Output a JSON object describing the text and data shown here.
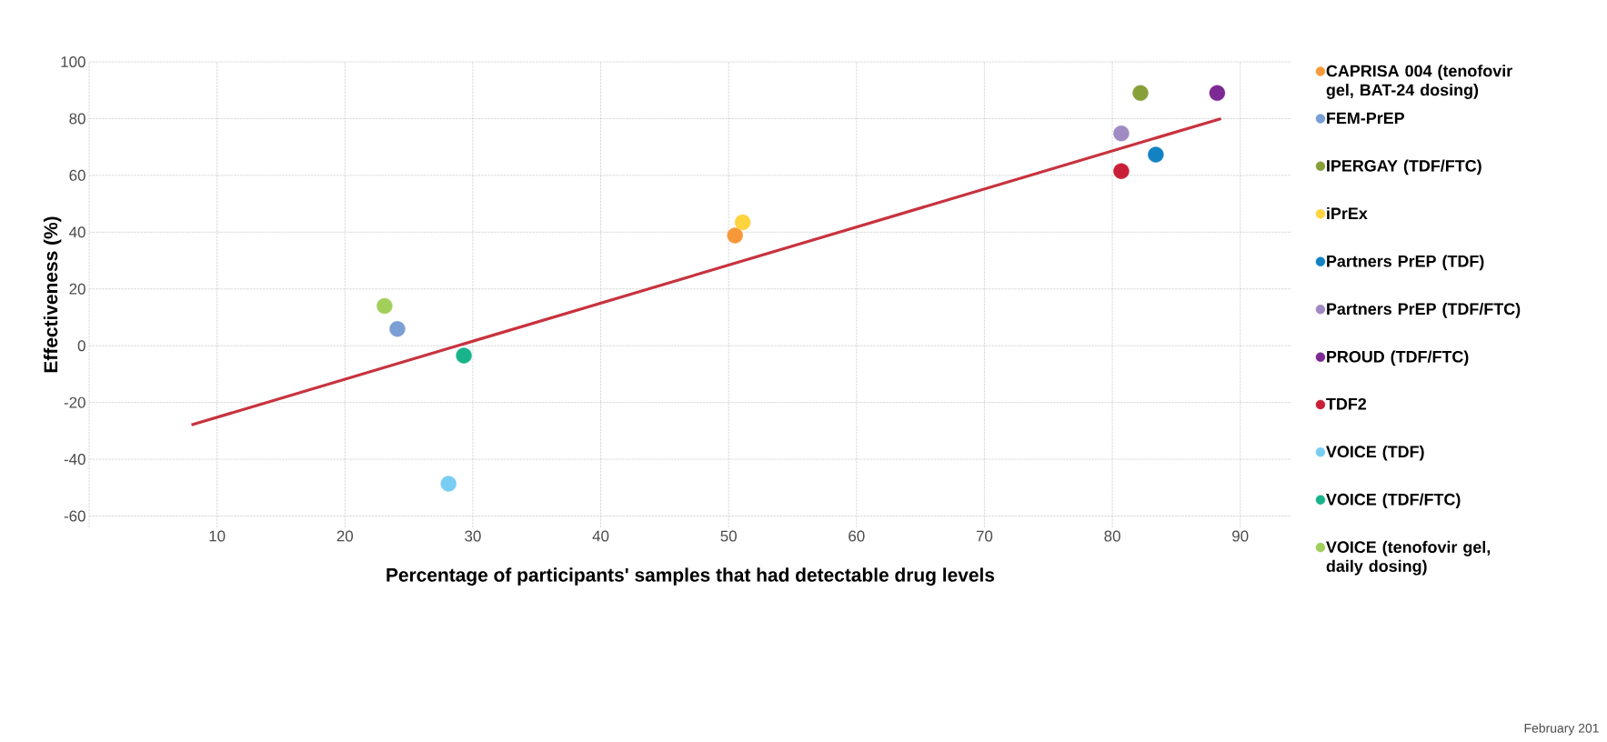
{
  "chart_data": {
    "type": "scatter",
    "xlabel": "Percentage of participants' samples that had detectable drug levels",
    "ylabel": "Effectiveness (%)",
    "xlim": [
      0,
      94
    ],
    "ylim": [
      -64,
      100
    ],
    "xticks": [
      {
        "value": 0,
        "label": null
      },
      10,
      20,
      30,
      40,
      50,
      60,
      70,
      80,
      90
    ],
    "yticks": [
      -60,
      -40,
      -20,
      0,
      20,
      40,
      60,
      80,
      100
    ],
    "grid": true,
    "legend": "right",
    "annotations": [
      "February 201"
    ],
    "series": [
      {
        "type": "line",
        "marker": "none",
        "color": "#c8323e",
        "x": [
          8,
          88.5
        ],
        "values": [
          -27.9,
          80.0
        ]
      },
      {
        "name": "CAPRISA 004 (tenofovir gel, BAT-24 dosing)",
        "marker": "circle",
        "color": "#f7993a",
        "x": [
          50.5
        ],
        "values": [
          38.8
        ]
      },
      {
        "name": "FEM-PrEP",
        "marker": "circle",
        "color": "#7b9fd4",
        "x": [
          24.1
        ],
        "values": [
          5.9
        ]
      },
      {
        "name": "IPERGAY (TDF/FTC)",
        "marker": "circle",
        "color": "#87a03a",
        "x": [
          82.2
        ],
        "values": [
          89.0
        ]
      },
      {
        "name": "iPrEx",
        "marker": "circle",
        "color": "#fdd33f",
        "x": [
          51.1
        ],
        "values": [
          43.5
        ]
      },
      {
        "name": "Partners PrEP (TDF)",
        "marker": "circle",
        "color": "#1282c2",
        "x": [
          83.4
        ],
        "values": [
          67.3
        ]
      },
      {
        "name": "Partners PrEP (TDF/FTC)",
        "marker": "circle",
        "color": "#a08ac4",
        "x": [
          80.7
        ],
        "values": [
          74.8
        ]
      },
      {
        "name": "PROUD (TDF/FTC)",
        "marker": "circle",
        "color": "#7d2994",
        "x": [
          88.2
        ],
        "values": [
          89.0
        ]
      },
      {
        "name": "TDF2",
        "marker": "circle",
        "color": "#c91f36",
        "x": [
          80.7
        ],
        "values": [
          61.5
        ]
      },
      {
        "name": "VOICE (TDF)",
        "marker": "circle",
        "color": "#79cdf2",
        "x": [
          28.1
        ],
        "values": [
          -48.6
        ]
      },
      {
        "name": "VOICE (TDF/FTC)",
        "marker": "circle",
        "color": "#17b38a",
        "x": [
          29.3
        ],
        "values": [
          -3.5
        ]
      },
      {
        "name": "VOICE (tenofovir gel, daily dosing)",
        "marker": "circle",
        "color": "#a2cf5a",
        "x": [
          23.1
        ],
        "values": [
          14.0
        ]
      }
    ]
  }
}
